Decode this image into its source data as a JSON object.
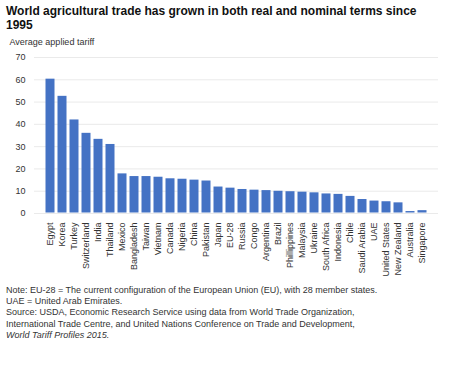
{
  "chart_data": {
    "type": "bar",
    "title": "World agricultural trade has grown in both real and nominal terms since 1995",
    "ylabel": "Average applied tariff",
    "categories": [
      "Egypt",
      "Korea",
      "Turkey",
      "Switzerland",
      "India",
      "Thailand",
      "Mexico",
      "Bangladesh",
      "Taiwan",
      "Vietnam",
      "Canada",
      "Nigeria",
      "China",
      "Pakistan",
      "Japan",
      "EU-28",
      "Russia",
      "Congo",
      "Argentina",
      "Brazil",
      "Phillippines",
      "Malaysia",
      "Ukraine",
      "South Africa",
      "Indonesia",
      "Chile",
      "Saudi Arabia",
      "UAE",
      "United States",
      "New Zealand",
      "Australia",
      "Singapore"
    ],
    "values": [
      60.5,
      52.8,
      42.2,
      36.2,
      33.5,
      31.2,
      18.0,
      16.8,
      16.8,
      16.5,
      15.8,
      15.6,
      15.2,
      14.8,
      12.1,
      11.6,
      11.0,
      10.7,
      10.5,
      10.2,
      10.0,
      9.8,
      9.5,
      9.0,
      8.8,
      7.9,
      6.5,
      5.8,
      5.5,
      5.0,
      1.1,
      1.5
    ],
    "color": "#4472C4",
    "ylim": [
      0,
      70
    ],
    "yticks": [
      0,
      10,
      20,
      30,
      40,
      50,
      60,
      70
    ],
    "grid": true,
    "annotations": [
      "Note: EU-28 = The current configuration of the European Union (EU), with 28 member states.",
      "UAE = United Arab Emirates.",
      "Source: USDA, Economic Research Service using data from World Trade Organization,",
      "International Trade Centre, and United Nations Conference on Trade and Development,",
      "World Tariff Profiles 2015."
    ]
  }
}
